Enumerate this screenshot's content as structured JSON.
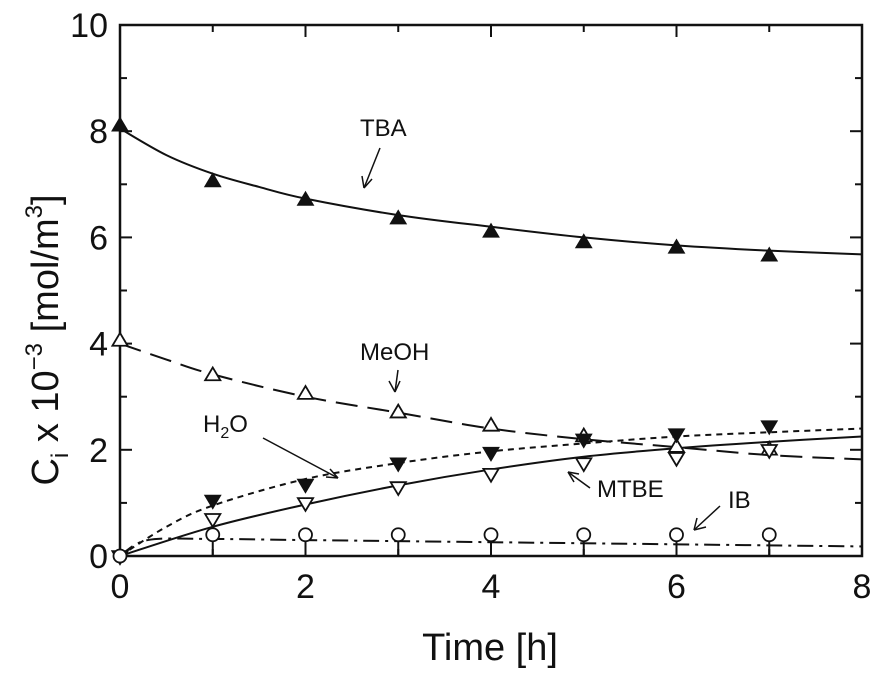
{
  "chart_data": {
    "type": "scatter",
    "xlabel": "Time [h]",
    "ylabel": "C",
    "ylabel_sub": "i",
    "ylabel_mid": " x 10",
    "ylabel_exp": "−3",
    "ylabel_unit": " [mol/m",
    "ylabel_unit_exp": "3",
    "ylabel_end": "]",
    "xlim": [
      0,
      8
    ],
    "ylim": [
      0,
      10
    ],
    "xticks": [
      "0",
      "2",
      "4",
      "6",
      "8"
    ],
    "yticks": [
      "0",
      "2",
      "4",
      "6",
      "8",
      "10"
    ],
    "grid": false,
    "legend": "none",
    "series": [
      {
        "name": "TBA",
        "marker": "filled-triangle-up",
        "line": "solid",
        "points": [
          [
            0,
            8.1
          ],
          [
            1,
            7.05
          ],
          [
            2,
            6.7
          ],
          [
            3,
            6.35
          ],
          [
            4,
            6.1
          ],
          [
            5,
            5.9
          ],
          [
            6,
            5.8
          ],
          [
            7,
            5.65
          ]
        ],
        "fit": [
          [
            0,
            8.05
          ],
          [
            0.5,
            7.55
          ],
          [
            1,
            7.2
          ],
          [
            1.5,
            6.95
          ],
          [
            2,
            6.73
          ],
          [
            3,
            6.42
          ],
          [
            4,
            6.2
          ],
          [
            5,
            6.0
          ],
          [
            6,
            5.85
          ],
          [
            7,
            5.75
          ],
          [
            8,
            5.68
          ]
        ]
      },
      {
        "name": "MeOH",
        "marker": "open-triangle-up",
        "line": "long-dash",
        "points": [
          [
            0,
            4.05
          ],
          [
            1,
            3.4
          ],
          [
            2,
            3.05
          ],
          [
            3,
            2.7
          ],
          [
            4,
            2.45
          ],
          [
            5,
            2.25
          ],
          [
            6,
            2.05
          ],
          [
            7,
            2.0
          ]
        ],
        "fit": [
          [
            0,
            4.0
          ],
          [
            0.5,
            3.7
          ],
          [
            1,
            3.42
          ],
          [
            2,
            3.0
          ],
          [
            3,
            2.7
          ],
          [
            4,
            2.4
          ],
          [
            5,
            2.2
          ],
          [
            6,
            2.05
          ],
          [
            7,
            1.9
          ],
          [
            8,
            1.82
          ]
        ]
      },
      {
        "name": "H₂O",
        "marker": "filled-triangle-down",
        "line": "short-dash",
        "points": [
          [
            0,
            0.0
          ],
          [
            1,
            1.05
          ],
          [
            2,
            1.35
          ],
          [
            3,
            1.75
          ],
          [
            4,
            1.95
          ],
          [
            5,
            2.2
          ],
          [
            6,
            2.3
          ],
          [
            7,
            2.45
          ]
        ],
        "fit": [
          [
            0,
            0.0
          ],
          [
            0.5,
            0.55
          ],
          [
            1,
            0.95
          ],
          [
            2,
            1.45
          ],
          [
            3,
            1.75
          ],
          [
            4,
            1.97
          ],
          [
            5,
            2.12
          ],
          [
            6,
            2.25
          ],
          [
            7,
            2.33
          ],
          [
            8,
            2.4
          ]
        ]
      },
      {
        "name": "MTBE",
        "marker": "open-triangle-down",
        "line": "solid",
        "points": [
          [
            0,
            0.0
          ],
          [
            1,
            0.7
          ],
          [
            2,
            1.0
          ],
          [
            3,
            1.3
          ],
          [
            4,
            1.55
          ],
          [
            5,
            1.75
          ],
          [
            6,
            1.85
          ],
          [
            7,
            2.0
          ]
        ],
        "fit": [
          [
            0,
            0.0
          ],
          [
            1,
            0.55
          ],
          [
            2,
            0.97
          ],
          [
            3,
            1.33
          ],
          [
            4,
            1.63
          ],
          [
            5,
            1.87
          ],
          [
            6,
            2.03
          ],
          [
            7,
            2.15
          ],
          [
            8,
            2.25
          ]
        ]
      },
      {
        "name": "IB",
        "marker": "open-circle-errorbar",
        "line": "dash-dot",
        "points": [
          [
            0,
            0.0
          ],
          [
            1,
            0.4
          ],
          [
            2,
            0.4
          ],
          [
            3,
            0.4
          ],
          [
            4,
            0.4
          ],
          [
            5,
            0.4
          ],
          [
            6,
            0.4
          ],
          [
            7,
            0.4
          ]
        ],
        "fit": [
          [
            0,
            0.0
          ],
          [
            0.3,
            0.3
          ],
          [
            1,
            0.32
          ],
          [
            2,
            0.3
          ],
          [
            4,
            0.26
          ],
          [
            6,
            0.22
          ],
          [
            8,
            0.18
          ]
        ]
      }
    ],
    "annotations": [
      {
        "text": "TBA",
        "series": "TBA"
      },
      {
        "text": "MeOH",
        "series": "MeOH"
      },
      {
        "text": "H",
        "sub": "2",
        "text_after": "O",
        "series": "H₂O"
      },
      {
        "text": "MTBE",
        "series": "MTBE"
      },
      {
        "text": "IB",
        "series": "IB"
      }
    ]
  }
}
